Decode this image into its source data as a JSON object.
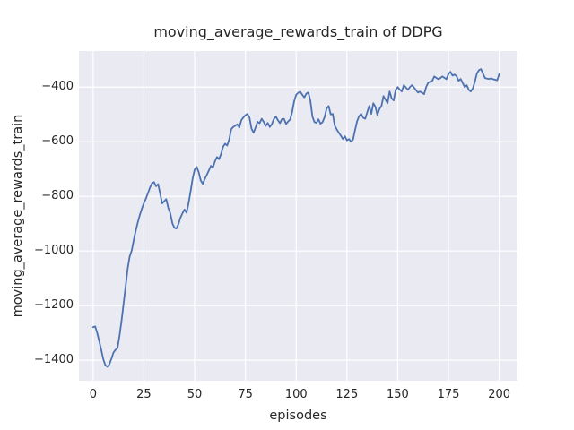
{
  "chart_data": {
    "type": "line",
    "title": "moving_average_rewards_train of DDPG",
    "xlabel": "episodes",
    "ylabel": "moving_average_rewards_train",
    "legend": null,
    "grid": true,
    "style": "seaborn-darkgrid",
    "colors": {
      "line": "#4C72B0",
      "plot_background": "#EAEAF2",
      "gridline": "#FFFFFF",
      "text": "#262626",
      "figure_background": "#FFFFFF"
    },
    "xlim": [
      -7,
      209
    ],
    "ylim": [
      -1475,
      -268
    ],
    "xticks": [
      {
        "v": 0,
        "label": "0"
      },
      {
        "v": 25,
        "label": "25"
      },
      {
        "v": 50,
        "label": "50"
      },
      {
        "v": 75,
        "label": "75"
      },
      {
        "v": 100,
        "label": "100"
      },
      {
        "v": 125,
        "label": "125"
      },
      {
        "v": 150,
        "label": "150"
      },
      {
        "v": 175,
        "label": "175"
      },
      {
        "v": 200,
        "label": "200"
      }
    ],
    "yticks": [
      {
        "v": -400,
        "label": "−400"
      },
      {
        "v": -600,
        "label": "−600"
      },
      {
        "v": -800,
        "label": "−800"
      },
      {
        "v": -1000,
        "label": "−1000"
      },
      {
        "v": -1200,
        "label": "−1200"
      },
      {
        "v": -1400,
        "label": "−1400"
      }
    ],
    "x_start": 0,
    "x_step": 1,
    "values": [
      -1279,
      -1276,
      -1300,
      -1330,
      -1362,
      -1396,
      -1418,
      -1424,
      -1415,
      -1395,
      -1372,
      -1362,
      -1356,
      -1310,
      -1255,
      -1192,
      -1130,
      -1065,
      -1020,
      -998,
      -960,
      -925,
      -895,
      -868,
      -845,
      -825,
      -808,
      -788,
      -768,
      -752,
      -748,
      -763,
      -755,
      -790,
      -826,
      -818,
      -810,
      -842,
      -862,
      -898,
      -915,
      -918,
      -902,
      -878,
      -862,
      -848,
      -860,
      -825,
      -782,
      -735,
      -702,
      -692,
      -712,
      -742,
      -754,
      -736,
      -721,
      -705,
      -688,
      -694,
      -672,
      -656,
      -664,
      -645,
      -618,
      -607,
      -614,
      -592,
      -554,
      -546,
      -541,
      -536,
      -548,
      -521,
      -511,
      -503,
      -498,
      -512,
      -552,
      -567,
      -548,
      -527,
      -532,
      -516,
      -527,
      -542,
      -531,
      -546,
      -536,
      -517,
      -508,
      -521,
      -532,
      -517,
      -516,
      -535,
      -526,
      -519,
      -492,
      -452,
      -428,
      -421,
      -417,
      -428,
      -438,
      -424,
      -420,
      -450,
      -508,
      -528,
      -531,
      -518,
      -534,
      -528,
      -510,
      -478,
      -469,
      -500,
      -498,
      -541,
      -555,
      -567,
      -578,
      -590,
      -580,
      -595,
      -590,
      -600,
      -592,
      -557,
      -525,
      -506,
      -498,
      -512,
      -516,
      -492,
      -469,
      -498,
      -459,
      -472,
      -502,
      -480,
      -469,
      -433,
      -446,
      -459,
      -416,
      -441,
      -449,
      -410,
      -400,
      -409,
      -416,
      -393,
      -401,
      -410,
      -400,
      -393,
      -401,
      -411,
      -420,
      -416,
      -421,
      -426,
      -400,
      -384,
      -380,
      -377,
      -361,
      -366,
      -371,
      -367,
      -361,
      -366,
      -371,
      -352,
      -344,
      -358,
      -354,
      -360,
      -377,
      -370,
      -385,
      -400,
      -393,
      -410,
      -416,
      -405,
      -380,
      -350,
      -338,
      -334,
      -351,
      -367,
      -369,
      -370,
      -368,
      -371,
      -373,
      -375,
      -352
    ]
  }
}
